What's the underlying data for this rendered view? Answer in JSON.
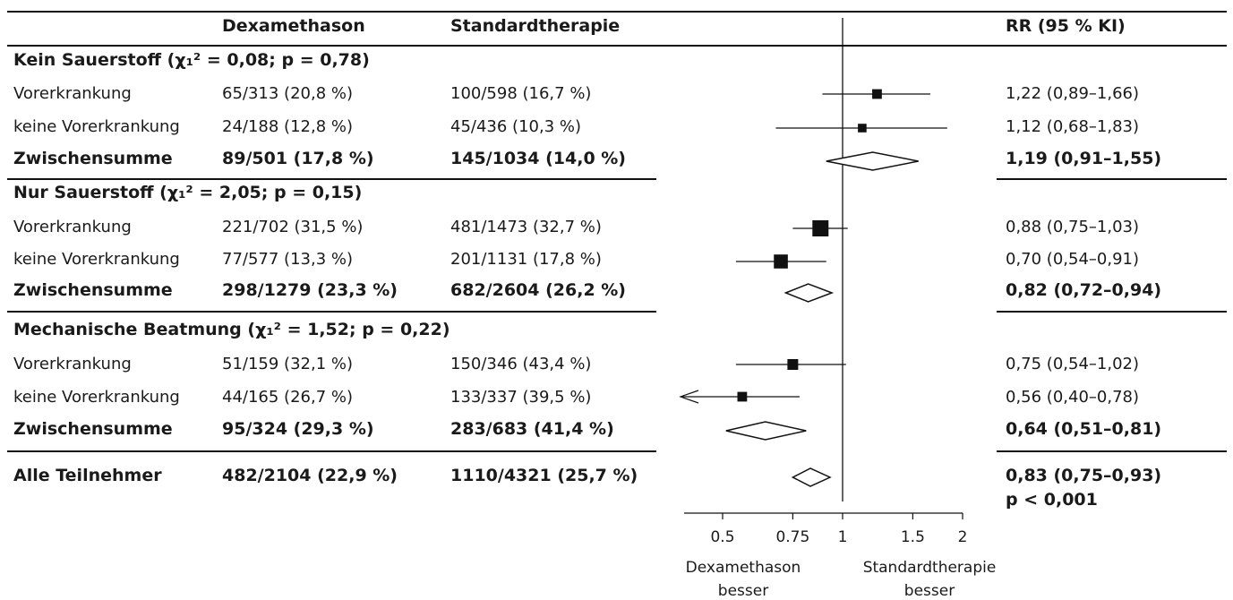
{
  "headers": {
    "col1": "Dexamethason",
    "col2": "Standardtherapie",
    "rr": "RR (95 % KI)"
  },
  "groups": [
    {
      "title": "Kein Sauerstoff (χ₁² = 0,08; p = 0,78)",
      "rows": [
        {
          "label": "Vorerkrankung",
          "dex": "65/313 (20,8 %)",
          "std": "100/598 (16,7 %)",
          "rr": "1,22 (0,89–1,66)",
          "type": "study"
        },
        {
          "label": "keine Vorerkrankung",
          "dex": "24/188 (12,8 %)",
          "std": "45/436 (10,3 %)",
          "rr": "1,12 (0,68–1,83)",
          "type": "study"
        },
        {
          "label": "Zwischensumme",
          "dex": "89/501 (17,8 %)",
          "std": "145/1034 (14,0 %)",
          "rr": "1,19 (0,91–1,55)",
          "type": "subtotal"
        }
      ]
    },
    {
      "title": "Nur Sauerstoff (χ₁² = 2,05; p = 0,15)",
      "rows": [
        {
          "label": "Vorerkrankung",
          "dex": "221/702 (31,5 %)",
          "std": "481/1473 (32,7 %)",
          "rr": "0,88 (0,75–1,03)",
          "type": "study"
        },
        {
          "label": "keine Vorerkrankung",
          "dex": "77/577 (13,3 %)",
          "std": "201/1131 (17,8 %)",
          "rr": "0,70 (0,54–0,91)",
          "type": "study"
        },
        {
          "label": "Zwischensumme",
          "dex": "298/1279 (23,3 %)",
          "std": "682/2604 (26,2 %)",
          "rr": "0,82 (0,72–0,94)",
          "type": "subtotal"
        }
      ]
    },
    {
      "title": "Mechanische Beatmung (χ₁² = 1,52; p = 0,22)",
      "rows": [
        {
          "label": "Vorerkrankung",
          "dex": "51/159 (32,1 %)",
          "std": "150/346 (43,4 %)",
          "rr": "0,75 (0,54–1,02)",
          "type": "study"
        },
        {
          "label": "keine Vorerkrankung",
          "dex": "44/165 (26,7 %)",
          "std": "133/337 (39,5 %)",
          "rr": "0,56 (0,40–0,78)",
          "type": "study"
        },
        {
          "label": "Zwischensumme",
          "dex": "95/324 (29,3 %)",
          "std": "283/683 (41,4 %)",
          "rr": "0,64 (0,51–0,81)",
          "type": "subtotal"
        }
      ]
    }
  ],
  "overall": {
    "label": "Alle Teilnehmer",
    "dex": "482/2104 (22,9 %)",
    "std": "1110/4321 (25,7 %)",
    "rr": "0,83 (0,75–0,93)",
    "p": "p < 0,001"
  },
  "axis": {
    "ticks": [
      "0.5",
      "0.75",
      "1",
      "1.5",
      "2"
    ],
    "left_label": [
      "Dexamethason",
      "besser"
    ],
    "right_label": [
      "Standardtherapie",
      "besser"
    ]
  },
  "chart_data": {
    "type": "forest",
    "scale": "log",
    "xlim": [
      0.4,
      2.0
    ],
    "reference": 1,
    "estimates": [
      {
        "name": "Kein Sauerstoff – Vorerkrankung",
        "rr": 1.22,
        "lo": 0.89,
        "hi": 1.66,
        "kind": "square",
        "weight": 0.4
      },
      {
        "name": "Kein Sauerstoff – keine Vorerkrankung",
        "rr": 1.12,
        "lo": 0.68,
        "hi": 1.83,
        "kind": "square",
        "weight": 0.3
      },
      {
        "name": "Kein Sauerstoff – Zwischensumme",
        "rr": 1.19,
        "lo": 0.91,
        "hi": 1.55,
        "kind": "diamond"
      },
      {
        "name": "Nur Sauerstoff – Vorerkrankung",
        "rr": 0.88,
        "lo": 0.75,
        "hi": 1.03,
        "kind": "square",
        "weight": 1.0
      },
      {
        "name": "Nur Sauerstoff – keine Vorerkrankung",
        "rr": 0.7,
        "lo": 0.54,
        "hi": 0.91,
        "kind": "square",
        "weight": 0.8
      },
      {
        "name": "Nur Sauerstoff – Zwischensumme",
        "rr": 0.82,
        "lo": 0.72,
        "hi": 0.94,
        "kind": "diamond"
      },
      {
        "name": "Mechanische Beatmung – Vorerkrankung",
        "rr": 0.75,
        "lo": 0.54,
        "hi": 1.02,
        "kind": "square",
        "weight": 0.5
      },
      {
        "name": "Mechanische Beatmung – keine Vorerkrankung",
        "rr": 0.56,
        "lo": 0.4,
        "hi": 0.78,
        "kind": "square",
        "weight": 0.4,
        "arrow_left": true
      },
      {
        "name": "Mechanische Beatmung – Zwischensumme",
        "rr": 0.64,
        "lo": 0.51,
        "hi": 0.81,
        "kind": "diamond"
      },
      {
        "name": "Alle Teilnehmer",
        "rr": 0.83,
        "lo": 0.75,
        "hi": 0.93,
        "kind": "diamond"
      }
    ]
  }
}
